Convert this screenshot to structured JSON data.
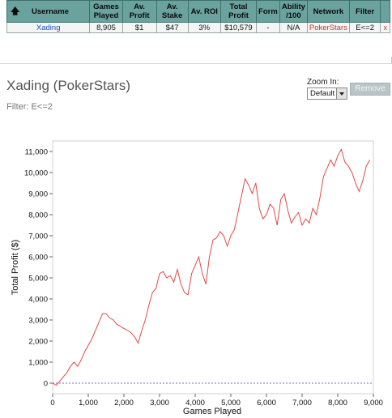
{
  "table": {
    "headers": {
      "username": "Username",
      "games_played": [
        "Games",
        "Played"
      ],
      "av_profit": [
        "Av.",
        "Profit"
      ],
      "av_stake": [
        "Av.",
        "Stake"
      ],
      "av_roi": "Av. ROI",
      "total_profit": [
        "Total",
        "Profit"
      ],
      "form": "Form",
      "ability": [
        "Ability",
        "/100"
      ],
      "network": "Network",
      "filter": "Filter"
    },
    "row": {
      "username": "Xading",
      "games_played": "8,905",
      "av_profit": "$1",
      "av_stake": "$47",
      "av_roi": "3%",
      "total_profit": "$10,579",
      "form": "-",
      "ability": "N/A",
      "network": "PokerStars",
      "filter": "E<=2",
      "remove": "x"
    }
  },
  "heading": {
    "title": "Xading (PokerStars)",
    "filter_text": "Filter: E<=2"
  },
  "zoom": {
    "label": "Zoom In:",
    "value": "Default"
  },
  "remove_button": "Remove",
  "colors": {
    "header_bg": "#6aa29e",
    "line": "#e04a4a",
    "zero_line": "#7b6fd0"
  },
  "chart_data": {
    "type": "line",
    "xlabel": "Games Played",
    "ylabel": "Total Profit ($)",
    "xlim": [
      0,
      9000
    ],
    "ylim": [
      -500,
      11500
    ],
    "xticks": [
      0,
      1000,
      2000,
      3000,
      4000,
      5000,
      6000,
      7000,
      8000,
      9000
    ],
    "xtick_labels": [
      "0",
      "1,000",
      "2,000",
      "3,000",
      "4,000",
      "5,000",
      "6,000",
      "7,000",
      "8,000",
      "9,000"
    ],
    "yticks": [
      0,
      1000,
      2000,
      3000,
      4000,
      5000,
      6000,
      7000,
      8000,
      9000,
      10000,
      11000
    ],
    "ytick_labels": [
      "0",
      "1,000",
      "2,000",
      "3,000",
      "4,000",
      "5,000",
      "6,000",
      "7,000",
      "8,000",
      "9,000",
      "10,000",
      "11,000"
    ],
    "zero_line": true,
    "x": [
      0,
      100,
      200,
      300,
      400,
      500,
      600,
      700,
      800,
      900,
      1000,
      1100,
      1200,
      1300,
      1400,
      1500,
      1600,
      1700,
      1800,
      1900,
      2000,
      2100,
      2200,
      2300,
      2400,
      2500,
      2600,
      2700,
      2800,
      2900,
      3000,
      3100,
      3200,
      3300,
      3400,
      3500,
      3600,
      3700,
      3800,
      3900,
      4000,
      4100,
      4200,
      4300,
      4400,
      4500,
      4600,
      4700,
      4800,
      4900,
      5000,
      5100,
      5200,
      5300,
      5400,
      5500,
      5600,
      5700,
      5800,
      5900,
      6000,
      6100,
      6200,
      6300,
      6400,
      6500,
      6600,
      6700,
      6800,
      6900,
      7000,
      7100,
      7200,
      7300,
      7400,
      7500,
      7600,
      7700,
      7800,
      7900,
      8000,
      8100,
      8200,
      8300,
      8400,
      8500,
      8600,
      8700,
      8800,
      8900
    ],
    "y": [
      0,
      -100,
      100,
      300,
      500,
      800,
      1000,
      800,
      1100,
      1500,
      1800,
      2100,
      2500,
      2900,
      3300,
      3300,
      3100,
      3000,
      2800,
      2700,
      2600,
      2500,
      2400,
      2200,
      1900,
      2500,
      3000,
      3700,
      4300,
      4500,
      5200,
      5300,
      5000,
      5100,
      4800,
      5400,
      4700,
      4300,
      4200,
      5200,
      5600,
      6000,
      5200,
      4700,
      6000,
      6800,
      6900,
      7200,
      7000,
      6500,
      7000,
      7300,
      8100,
      8900,
      9700,
      9400,
      9000,
      9500,
      8300,
      7800,
      8000,
      8500,
      8300,
      7500,
      8700,
      9000,
      8200,
      7600,
      7900,
      8100,
      7500,
      7800,
      7600,
      8300,
      8000,
      8800,
      9800,
      10200,
      10600,
      10300,
      10800,
      11100,
      10500,
      10300,
      10000,
      9500,
      9100,
      9600,
      10300,
      10600
    ]
  }
}
